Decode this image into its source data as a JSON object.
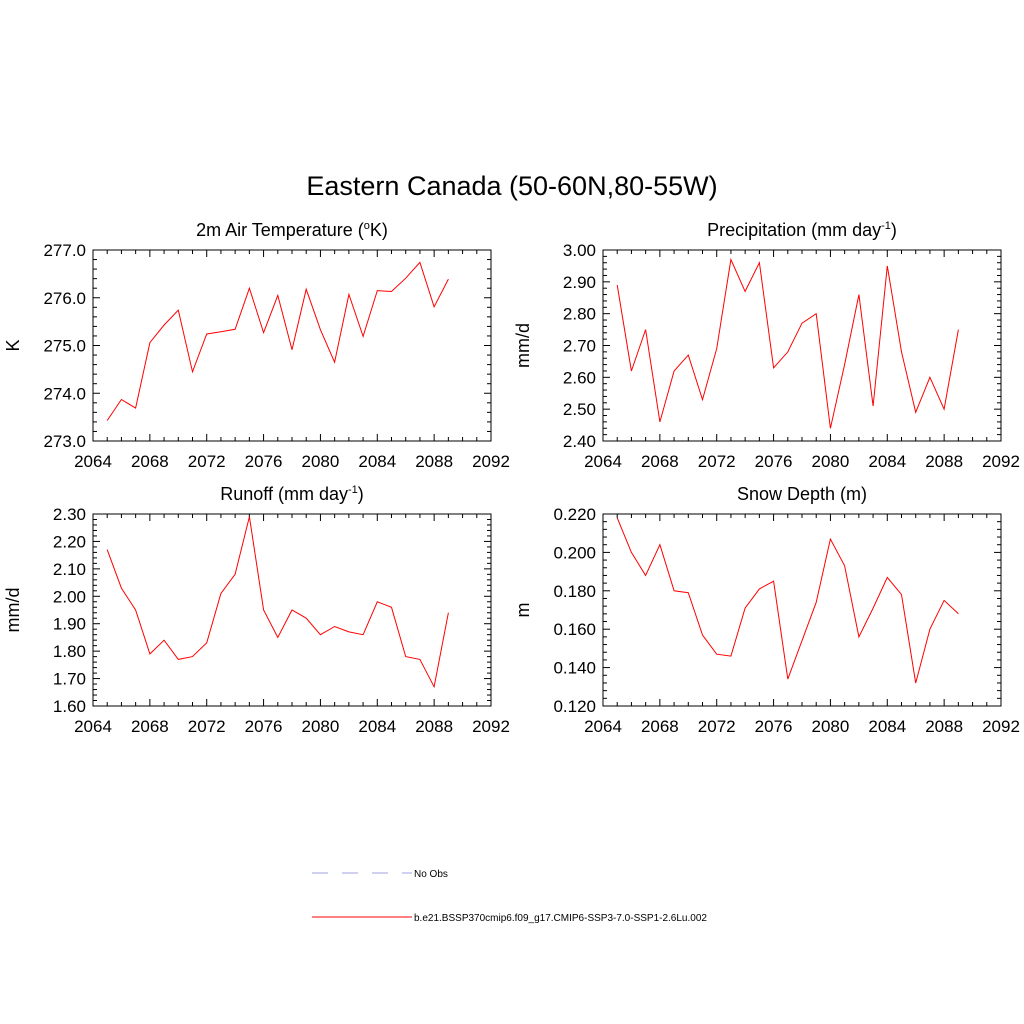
{
  "figure": {
    "title": "Eastern Canada (50-60N,80-55W)",
    "line_color": "#ff0000",
    "obs_color": "#a0a0e0"
  },
  "legend": {
    "items": [
      {
        "label": "No Obs",
        "style": "dashed",
        "color": "#a0a0e0"
      },
      {
        "label": "b.e21.BSSP370cmip6.f09_g17.CMIP6-SSP3-7.0-SSP1-2.6Lu.002",
        "style": "solid",
        "color": "#ff0000"
      }
    ]
  },
  "chart_data": [
    {
      "type": "line",
      "title": "2m Air Temperature (",
      "title_sup": "o",
      "title_after": "K)",
      "ylabel": "K",
      "xlim": [
        2064,
        2092
      ],
      "ylim": [
        273.0,
        277.0
      ],
      "x_ticks": [
        "2064",
        "2068",
        "2072",
        "2076",
        "2080",
        "2084",
        "2088",
        "2092"
      ],
      "y_ticks": [
        "273.0",
        "274.0",
        "275.0",
        "276.0",
        "277.0"
      ],
      "x": [
        2065,
        2066,
        2067,
        2068,
        2069,
        2070,
        2071,
        2072,
        2073,
        2074,
        2075,
        2076,
        2077,
        2078,
        2079,
        2080,
        2081,
        2082,
        2083,
        2084,
        2085,
        2086,
        2087,
        2088,
        2089
      ],
      "series": [
        {
          "values": [
            273.43,
            273.87,
            273.69,
            275.06,
            275.43,
            275.74,
            274.45,
            275.24,
            275.29,
            275.34,
            276.2,
            275.27,
            276.05,
            274.91,
            276.18,
            275.33,
            274.65,
            276.07,
            275.19,
            276.15,
            276.13,
            276.41,
            276.74,
            275.81,
            276.39
          ]
        }
      ]
    },
    {
      "type": "line",
      "title": "Precipitation (mm day",
      "title_sup": "-1",
      "title_after": ")",
      "ylabel": "mm/d",
      "xlim": [
        2064,
        2092
      ],
      "ylim": [
        2.4,
        3.0
      ],
      "x_ticks": [
        "2064",
        "2068",
        "2072",
        "2076",
        "2080",
        "2084",
        "2088",
        "2092"
      ],
      "y_ticks": [
        "2.40",
        "2.50",
        "2.60",
        "2.70",
        "2.80",
        "2.90",
        "3.00"
      ],
      "x": [
        2065,
        2066,
        2067,
        2068,
        2069,
        2070,
        2071,
        2072,
        2073,
        2074,
        2075,
        2076,
        2077,
        2078,
        2079,
        2080,
        2081,
        2082,
        2083,
        2084,
        2085,
        2086,
        2087,
        2088,
        2089
      ],
      "series": [
        {
          "values": [
            2.89,
            2.62,
            2.75,
            2.46,
            2.62,
            2.67,
            2.53,
            2.69,
            2.97,
            2.87,
            2.96,
            2.63,
            2.68,
            2.77,
            2.8,
            2.44,
            2.64,
            2.86,
            2.51,
            2.95,
            2.68,
            2.49,
            2.6,
            2.5,
            2.75
          ]
        }
      ]
    },
    {
      "type": "line",
      "title": "Runoff (mm day",
      "title_sup": "-1",
      "title_after": ")",
      "ylabel": "mm/d",
      "xlim": [
        2064,
        2092
      ],
      "ylim": [
        1.6,
        2.3
      ],
      "x_ticks": [
        "2064",
        "2068",
        "2072",
        "2076",
        "2080",
        "2084",
        "2088",
        "2092"
      ],
      "y_ticks": [
        "1.60",
        "1.70",
        "1.80",
        "1.90",
        "2.00",
        "2.10",
        "2.20",
        "2.30"
      ],
      "x": [
        2065,
        2066,
        2067,
        2068,
        2069,
        2070,
        2071,
        2072,
        2073,
        2074,
        2075,
        2076,
        2077,
        2078,
        2079,
        2080,
        2081,
        2082,
        2083,
        2084,
        2085,
        2086,
        2087,
        2088,
        2089
      ],
      "series": [
        {
          "values": [
            2.17,
            2.03,
            1.95,
            1.79,
            1.84,
            1.77,
            1.78,
            1.83,
            2.01,
            2.08,
            2.29,
            1.95,
            1.85,
            1.95,
            1.92,
            1.86,
            1.89,
            1.87,
            1.86,
            1.98,
            1.96,
            1.78,
            1.77,
            1.67,
            1.94
          ]
        }
      ]
    },
    {
      "type": "line",
      "title": "Snow Depth (m)",
      "title_sup": "",
      "title_after": "",
      "ylabel": "m",
      "xlim": [
        2064,
        2092
      ],
      "ylim": [
        0.12,
        0.22
      ],
      "x_ticks": [
        "2064",
        "2068",
        "2072",
        "2076",
        "2080",
        "2084",
        "2088",
        "2092"
      ],
      "y_ticks": [
        "0.120",
        "0.140",
        "0.160",
        "0.180",
        "0.200",
        "0.220"
      ],
      "x": [
        2065,
        2066,
        2067,
        2068,
        2069,
        2070,
        2071,
        2072,
        2073,
        2074,
        2075,
        2076,
        2077,
        2078,
        2079,
        2080,
        2081,
        2082,
        2083,
        2084,
        2085,
        2086,
        2087,
        2088,
        2089
      ],
      "series": [
        {
          "values": [
            0.218,
            0.2,
            0.188,
            0.204,
            0.18,
            0.179,
            0.157,
            0.147,
            0.146,
            0.171,
            0.181,
            0.185,
            0.134,
            0.154,
            0.174,
            0.207,
            0.193,
            0.156,
            0.171,
            0.187,
            0.178,
            0.132,
            0.16,
            0.175,
            0.168
          ]
        }
      ]
    }
  ]
}
